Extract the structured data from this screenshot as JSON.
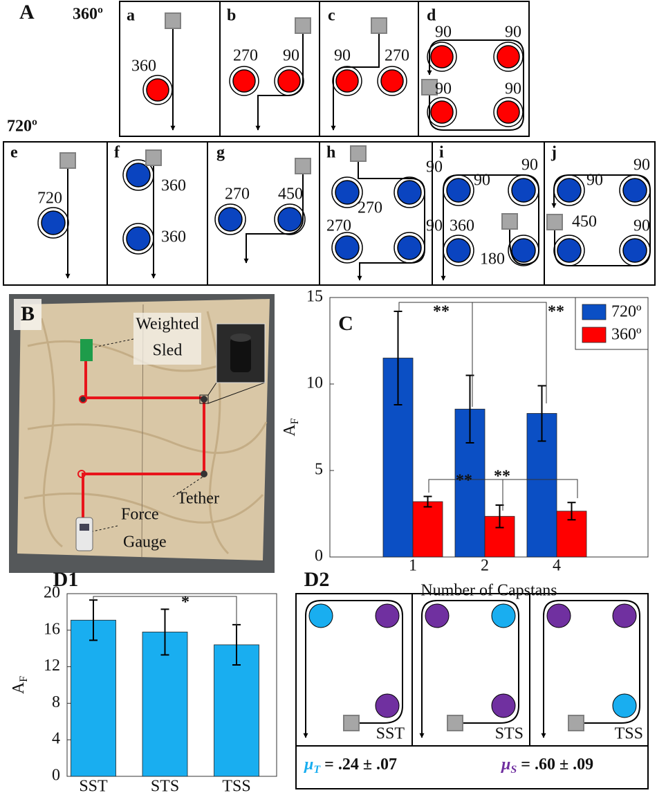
{
  "panel_a": {
    "label": "A",
    "rows": [
      "360º",
      "720º"
    ],
    "diagrams": [
      {
        "id": "a",
        "labels": [
          360
        ]
      },
      {
        "id": "b",
        "labels": [
          270,
          90
        ]
      },
      {
        "id": "c",
        "labels": [
          90,
          270
        ]
      },
      {
        "id": "d",
        "labels": [
          90,
          90,
          90,
          90
        ]
      },
      {
        "id": "e",
        "labels": [
          720
        ]
      },
      {
        "id": "f",
        "labels": [
          360,
          360
        ]
      },
      {
        "id": "g",
        "labels": [
          270,
          450
        ]
      },
      {
        "id": "h",
        "labels": [
          90,
          270,
          270,
          90
        ]
      },
      {
        "id": "i",
        "labels": [
          90,
          90,
          360,
          180
        ]
      },
      {
        "id": "j",
        "labels": [
          90,
          90,
          450,
          90
        ]
      }
    ]
  },
  "panel_b": {
    "label": "B",
    "weighted_sled": [
      "Weighted",
      "Sled"
    ],
    "tether": "Tether",
    "force_gauge": [
      "Force",
      "Gauge"
    ]
  },
  "panel_d2": {
    "label": "D2",
    "configs": [
      "SST",
      "STS",
      "TSS"
    ],
    "colors": {
      "T": "#19aef0",
      "S": "#7030a0"
    },
    "mu_t": {
      "symbol": "μ",
      "sub": "T",
      "value": " = .24 ± .07"
    },
    "mu_s": {
      "symbol": "μ",
      "sub": "S",
      "value": " = .60 ± .09"
    }
  },
  "chart_data": [
    {
      "type": "bar",
      "panel_label": "C",
      "x_label": "Number of Capstans",
      "y_label": "A",
      "y_label_sub": "F",
      "categories": [
        "1",
        "2",
        "4"
      ],
      "series": [
        {
          "name": "720º",
          "color": "#0b4fc4",
          "values": [
            11.5,
            8.55,
            8.3
          ],
          "errors": [
            2.7,
            1.95,
            1.6
          ]
        },
        {
          "name": "360º",
          "color": "#ff0000",
          "values": [
            3.2,
            2.35,
            2.65
          ],
          "errors": [
            0.3,
            0.65,
            0.5
          ]
        }
      ],
      "ylim": [
        0,
        15
      ],
      "yticks": [
        0,
        5,
        10,
        15
      ],
      "legend": "upper right",
      "grid": false,
      "annotations": [
        "**",
        "**",
        "**",
        "**"
      ]
    },
    {
      "type": "bar",
      "panel_label": "D1",
      "y_label": "A",
      "y_label_sub": "F",
      "categories": [
        "SST",
        "STS",
        "TSS"
      ],
      "values": [
        17.1,
        15.8,
        14.4
      ],
      "errors": [
        2.2,
        2.5,
        2.2
      ],
      "color": "#19aef0",
      "ylim": [
        0,
        20
      ],
      "yticks": [
        0,
        4,
        8,
        12,
        16,
        20
      ],
      "grid": false,
      "annotations": [
        "*"
      ]
    }
  ]
}
